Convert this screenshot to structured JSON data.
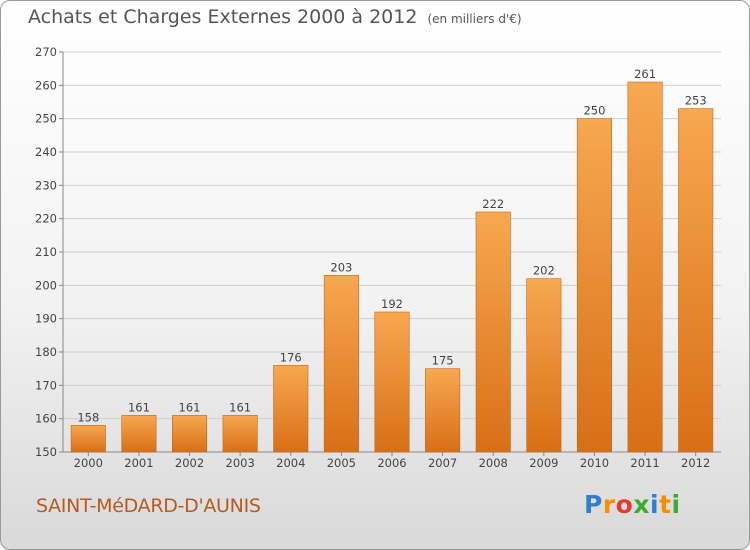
{
  "header": {
    "title": "Achats et Charges Externes 2000 à 2012",
    "subtitle": "(en milliers d'€)"
  },
  "footer": {
    "commune": "SAINT-MéDARD-D'AUNIS",
    "logo": {
      "letters": [
        "P",
        "r",
        "o",
        "x",
        "i",
        "t",
        "i"
      ],
      "colors": [
        "#2e7fcf",
        "#ff8c00",
        "#e03c31",
        "#3cab2f",
        "#2e7fcf",
        "#ff8c00",
        "#3cab2f"
      ]
    }
  },
  "colors": {
    "bar_light": "#f7a850",
    "bar_dark": "#d86f17",
    "grid": "#d0d0d0",
    "axis_text": "#444444"
  },
  "chart_data": {
    "type": "bar",
    "title": "Achats et Charges Externes 2000 à 2012",
    "subtitle": "(en milliers d'€)",
    "categories": [
      "2000",
      "2001",
      "2002",
      "2003",
      "2004",
      "2005",
      "2006",
      "2007",
      "2008",
      "2009",
      "2010",
      "2011",
      "2012"
    ],
    "values": [
      158,
      161,
      161,
      161,
      176,
      203,
      192,
      175,
      222,
      202,
      250,
      261,
      253
    ],
    "ylim": [
      150,
      270
    ],
    "yticks": [
      150,
      160,
      170,
      180,
      190,
      200,
      210,
      220,
      230,
      240,
      250,
      260,
      270
    ],
    "grid": true,
    "xlabel": "",
    "ylabel": ""
  }
}
